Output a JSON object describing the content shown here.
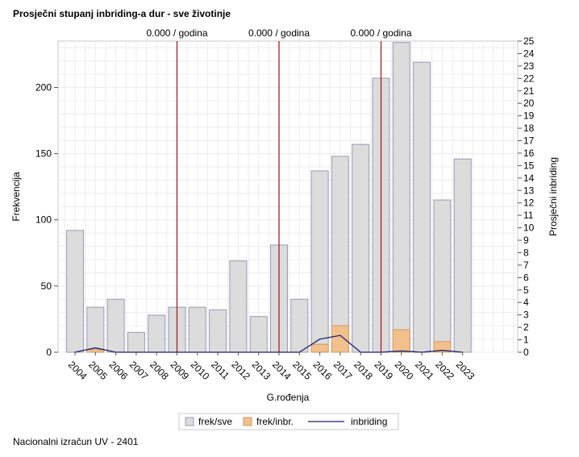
{
  "title": "Prosječni stupanj inbriding-a dur - sve životinje",
  "footer": "Nacionalni izračun UV - 2401",
  "chart_data": {
    "type": "bar",
    "categories": [
      "2004",
      "2005",
      "2006",
      "2007",
      "2008",
      "2009",
      "2010",
      "2011",
      "2012",
      "2013",
      "2014",
      "2015",
      "2016",
      "2017",
      "2018",
      "2019",
      "2020",
      "2021",
      "2022",
      "2023"
    ],
    "series": [
      {
        "name": "frek/sve",
        "type": "bar",
        "color": "#dcdcdc",
        "values": [
          92,
          34,
          40,
          15,
          28,
          34,
          34,
          32,
          69,
          27,
          81,
          40,
          137,
          148,
          157,
          207,
          234,
          219,
          115,
          146
        ]
      },
      {
        "name": "frek/inbr.",
        "type": "bar",
        "color": "#f2c08c",
        "values": [
          0,
          2,
          0,
          0,
          0,
          0,
          0,
          0,
          0,
          0,
          0,
          0,
          6,
          20,
          0,
          0,
          17,
          0,
          8,
          0
        ]
      },
      {
        "name": "inbriding",
        "type": "line",
        "axis": "right",
        "color": "#1f1f6b",
        "values": [
          0,
          0.35,
          0,
          0,
          0,
          0,
          0,
          0,
          0,
          0,
          0,
          0,
          1.05,
          1.35,
          0,
          0,
          0.1,
          0,
          0.15,
          0
        ]
      }
    ],
    "xlabel": "G.rođenja",
    "ylabel": "Frekvencija",
    "y2label": "Prosječni inbriding",
    "ylim": [
      0,
      235
    ],
    "yticks": [
      0,
      50,
      100,
      150,
      200
    ],
    "y2lim": [
      0,
      25
    ],
    "y2ticks": [
      0,
      1,
      2,
      3,
      4,
      5,
      6,
      7,
      8,
      9,
      10,
      11,
      12,
      13,
      14,
      15,
      16,
      17,
      18,
      19,
      20,
      21,
      22,
      23,
      24,
      25
    ],
    "reference_lines": [
      {
        "x": "2009",
        "label": "0.000 / godina"
      },
      {
        "x": "2014",
        "label": "0.000 / godina"
      },
      {
        "x": "2019",
        "label": "0.000 / godina"
      }
    ],
    "grid": true,
    "legend_position": "bottom"
  }
}
